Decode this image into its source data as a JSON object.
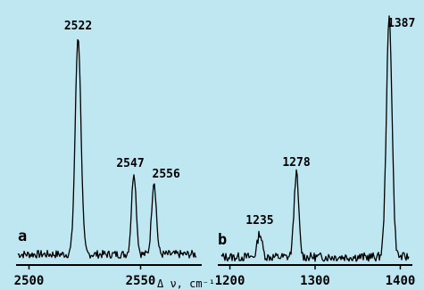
{
  "chart_data": [
    {
      "panel": "a",
      "type": "line",
      "xlabel": "Δ ν, cm⁻¹",
      "xlim": [
        2495,
        2575
      ],
      "ticks": [
        2500,
        2550
      ],
      "tick_labels": [
        "2500",
        "2550"
      ],
      "peaks": [
        {
          "x": 2522,
          "label": "2522",
          "height": 0.98
        },
        {
          "x": 2547,
          "label": "2547",
          "height": 0.37
        },
        {
          "x": 2556,
          "label": "2556",
          "height": 0.33
        }
      ],
      "color": "#000000",
      "grid": false
    },
    {
      "panel": "b",
      "type": "line",
      "xlabel": "",
      "xlim": [
        1190,
        1410
      ],
      "ticks": [
        1200,
        1300,
        1400
      ],
      "tick_labels": [
        "1200",
        "1300",
        "1400"
      ],
      "peaks": [
        {
          "x": 1235,
          "label": "1235",
          "height": 0.1
        },
        {
          "x": 1278,
          "label": "1278",
          "height": 0.35
        },
        {
          "x": 1387,
          "label": "1387",
          "height": 1.0
        }
      ],
      "color": "#000000",
      "grid": false
    }
  ]
}
